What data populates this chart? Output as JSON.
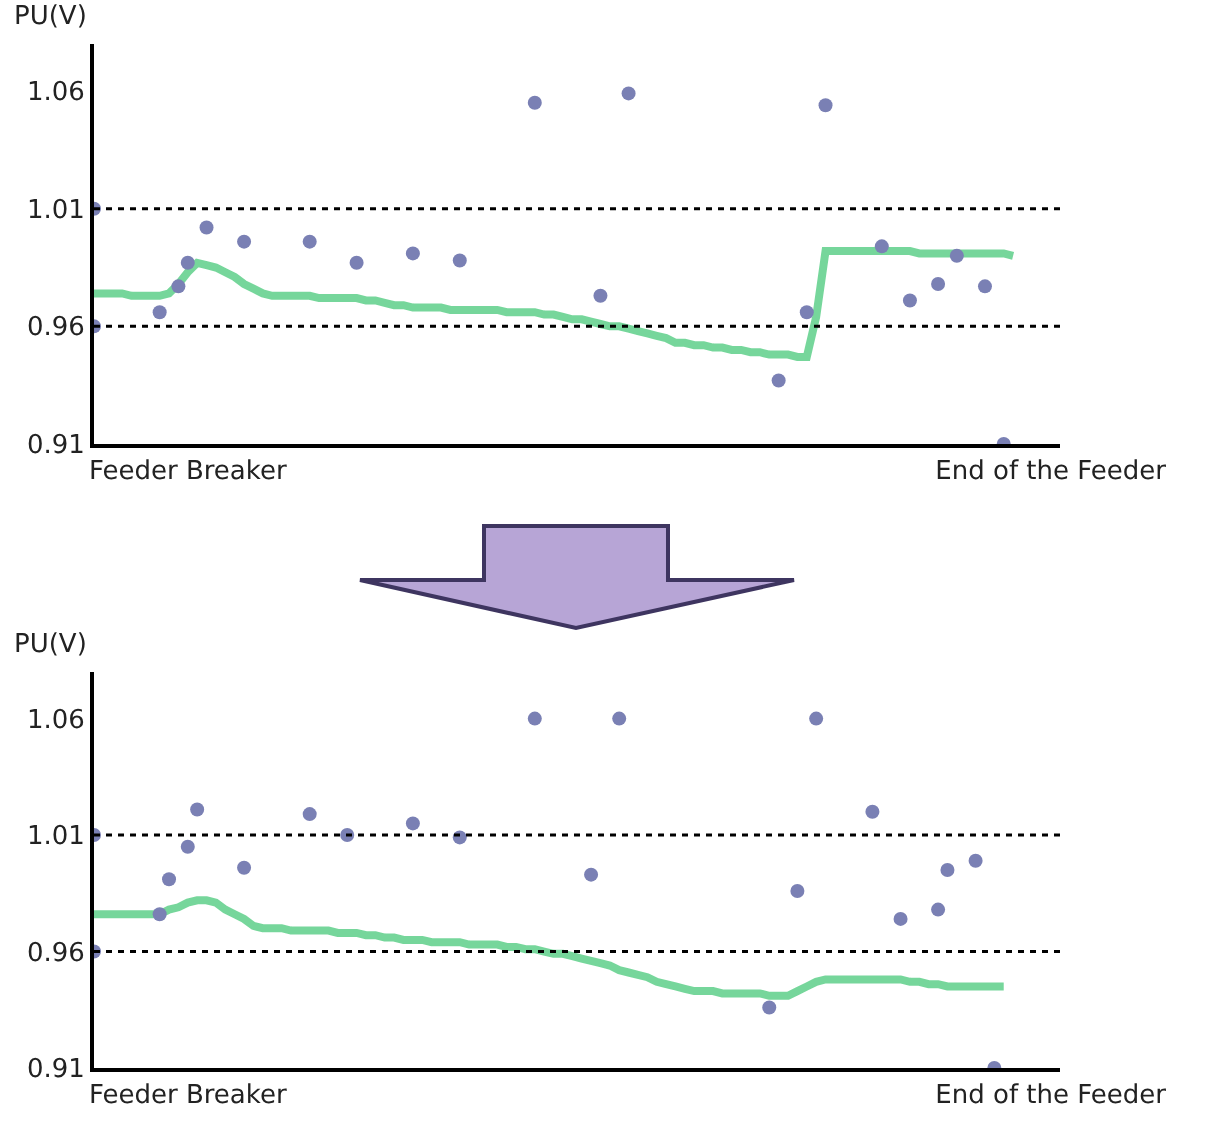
{
  "chart_data": [
    {
      "type": "scatter",
      "ylabel": "PU(V)",
      "ylim": [
        0.91,
        1.08
      ],
      "yticks": [
        0.91,
        0.96,
        1.01,
        1.06
      ],
      "categories": [
        null,
        null,
        null,
        null,
        null,
        null,
        null,
        null,
        null,
        null,
        "Feeder Breaker",
        null,
        null,
        null,
        null,
        null,
        null,
        null,
        null,
        null,
        null,
        null,
        null,
        null,
        null,
        null,
        null,
        null,
        null,
        null,
        null,
        null,
        null,
        null,
        null,
        null,
        null,
        null,
        null,
        null,
        null,
        null,
        null,
        null,
        null,
        null,
        null,
        null,
        null,
        null,
        null,
        null,
        null,
        null,
        null,
        null,
        null,
        null,
        null,
        null,
        null,
        null,
        null,
        null,
        null,
        null,
        null,
        null,
        null,
        null,
        null,
        null,
        null,
        null,
        null,
        null,
        null,
        null,
        null,
        null,
        null,
        null,
        null,
        null,
        null,
        null,
        null,
        null,
        null,
        null,
        null,
        null,
        null,
        null,
        null,
        null,
        null,
        null,
        null,
        null,
        null,
        null,
        "End of the Feeder",
        null
      ],
      "ref_lines": [
        {
          "axis": "y",
          "value": 1.01,
          "line_style": "dotted",
          "color": "#000000"
        },
        {
          "axis": "y",
          "value": 0.96,
          "line_style": "dotted",
          "color": "#000000"
        }
      ],
      "series": [
        {
          "color": "#7a80b4",
          "marker": "circle",
          "values": [
            1.01,
            null,
            null,
            null,
            null,
            null,
            null,
            0.966,
            null,
            0.977,
            0.987,
            null,
            1.002,
            null,
            null,
            null,
            0.996,
            null,
            null,
            null,
            null,
            null,
            null,
            0.996,
            null,
            null,
            null,
            null,
            0.987,
            null,
            null,
            null,
            null,
            null,
            0.991,
            null,
            null,
            null,
            null,
            0.988,
            null,
            null,
            null,
            null,
            null,
            null,
            null,
            1.055,
            null,
            null,
            null,
            null,
            null,
            null,
            0.973,
            null,
            null,
            1.059,
            null,
            null,
            null,
            null,
            null,
            null,
            null,
            null,
            null,
            null,
            null,
            null,
            null,
            null,
            null,
            0.937,
            null,
            null,
            0.966,
            null,
            1.054,
            null,
            null,
            null,
            null,
            null,
            0.994,
            null,
            null,
            0.971,
            null,
            null,
            0.978,
            null,
            0.99,
            null,
            null,
            0.977,
            null,
            0.91,
            null,
            null,
            null,
            null,
            null,
            null
          ]
        },
        {
          "color": "#7a80b4",
          "marker": "circle",
          "values": [
            0.96,
            null,
            null,
            null,
            null,
            null,
            null,
            null,
            null,
            null,
            null,
            null,
            null,
            null,
            null,
            null,
            null,
            null,
            null,
            null,
            null,
            null,
            null,
            null,
            null,
            null,
            null,
            null,
            null,
            null,
            null,
            null,
            null,
            null,
            null,
            null,
            null,
            null,
            null,
            null,
            null,
            null,
            null,
            null,
            null,
            null,
            null,
            null,
            null,
            null,
            null,
            null,
            null,
            null,
            null,
            null,
            null,
            null,
            null,
            null,
            null,
            null,
            null,
            null,
            null,
            null,
            null,
            null,
            null,
            null,
            null,
            null,
            null,
            null,
            null,
            null,
            null,
            null,
            null,
            null,
            null,
            null,
            null,
            null,
            null,
            null,
            null,
            null,
            null,
            null,
            null,
            null,
            null,
            null,
            null,
            null,
            null,
            null,
            null,
            null,
            null,
            null,
            null,
            null
          ]
        },
        {
          "type": "line",
          "color": "#5fd08a",
          "line_style": "solid",
          "values": [
            0.974,
            0.974,
            0.974,
            0.974,
            0.973,
            0.973,
            0.973,
            0.973,
            0.974,
            0.978,
            0.983,
            0.987,
            0.986,
            0.985,
            0.983,
            0.981,
            0.978,
            0.976,
            0.974,
            0.973,
            0.973,
            0.973,
            0.973,
            0.973,
            0.972,
            0.972,
            0.972,
            0.972,
            0.972,
            0.971,
            0.971,
            0.97,
            0.969,
            0.969,
            0.968,
            0.968,
            0.968,
            0.968,
            0.967,
            0.967,
            0.967,
            0.967,
            0.967,
            0.967,
            0.966,
            0.966,
            0.966,
            0.966,
            0.965,
            0.965,
            0.964,
            0.963,
            0.963,
            0.962,
            0.961,
            0.96,
            0.96,
            0.959,
            0.958,
            0.957,
            0.956,
            0.955,
            0.953,
            0.953,
            0.952,
            0.952,
            0.951,
            0.951,
            0.95,
            0.95,
            0.949,
            0.949,
            0.948,
            0.948,
            0.948,
            0.947,
            0.947,
            0.964,
            0.992,
            0.992,
            0.992,
            0.992,
            0.992,
            0.992,
            0.992,
            0.992,
            0.992,
            0.992,
            0.991,
            0.991,
            0.991,
            0.991,
            0.991,
            0.991,
            0.991,
            0.991,
            0.991,
            0.991,
            0.99,
            null,
            null,
            null,
            null,
            null
          ]
        }
      ]
    },
    {
      "type": "scatter",
      "ylabel": "PU(V)",
      "ylim": [
        0.91,
        1.08
      ],
      "yticks": [
        0.91,
        0.96,
        1.01,
        1.06
      ],
      "categories": [
        null,
        null,
        null,
        null,
        null,
        null,
        null,
        null,
        null,
        null,
        "Feeder Breaker",
        null,
        null,
        null,
        null,
        null,
        null,
        null,
        null,
        null,
        null,
        null,
        null,
        null,
        null,
        null,
        null,
        null,
        null,
        null,
        null,
        null,
        null,
        null,
        null,
        null,
        null,
        null,
        null,
        null,
        null,
        null,
        null,
        null,
        null,
        null,
        null,
        null,
        null,
        null,
        null,
        null,
        null,
        null,
        null,
        null,
        null,
        null,
        null,
        null,
        null,
        null,
        null,
        null,
        null,
        null,
        null,
        null,
        null,
        null,
        null,
        null,
        null,
        null,
        null,
        null,
        null,
        null,
        null,
        null,
        null,
        null,
        null,
        null,
        null,
        null,
        null,
        null,
        null,
        null,
        null,
        null,
        null,
        null,
        null,
        null,
        null,
        null,
        null,
        null,
        null,
        null,
        "End of the Feeder",
        null
      ],
      "ref_lines": [
        {
          "axis": "y",
          "value": 1.01,
          "line_style": "dotted",
          "color": "#000000"
        },
        {
          "axis": "y",
          "value": 0.96,
          "line_style": "dotted",
          "color": "#000000"
        }
      ],
      "series": [
        {
          "color": "#7a80b4",
          "marker": "circle",
          "values": [
            1.01,
            null,
            null,
            null,
            null,
            null,
            null,
            0.976,
            0.991,
            null,
            1.005,
            1.021,
            null,
            null,
            null,
            null,
            0.996,
            null,
            null,
            null,
            null,
            null,
            null,
            1.019,
            null,
            null,
            null,
            1.01,
            null,
            null,
            null,
            null,
            null,
            null,
            1.015,
            null,
            null,
            null,
            null,
            1.009,
            null,
            null,
            null,
            null,
            null,
            null,
            null,
            1.06,
            null,
            null,
            null,
            null,
            null,
            0.993,
            null,
            null,
            1.06,
            null,
            null,
            null,
            null,
            null,
            null,
            null,
            null,
            null,
            null,
            null,
            null,
            null,
            null,
            null,
            0.936,
            null,
            null,
            0.986,
            null,
            1.06,
            null,
            null,
            null,
            null,
            null,
            1.02,
            null,
            null,
            0.974,
            null,
            null,
            null,
            0.978,
            0.995,
            null,
            null,
            0.999,
            null,
            0.91,
            null,
            null,
            null,
            null,
            null,
            null,
            null
          ]
        },
        {
          "color": "#7a80b4",
          "marker": "circle",
          "values": [
            0.96,
            null,
            null,
            null,
            null,
            null,
            null,
            null,
            null,
            null,
            null,
            null,
            null,
            null,
            null,
            null,
            null,
            null,
            null,
            null,
            null,
            null,
            null,
            null,
            null,
            null,
            null,
            null,
            null,
            null,
            null,
            null,
            null,
            null,
            null,
            null,
            null,
            null,
            null,
            null,
            null,
            null,
            null,
            null,
            null,
            null,
            null,
            null,
            null,
            null,
            null,
            null,
            null,
            null,
            null,
            null,
            null,
            null,
            null,
            null,
            null,
            null,
            null,
            null,
            null,
            null,
            null,
            null,
            null,
            null,
            null,
            null,
            null,
            null,
            null,
            null,
            null,
            null,
            null,
            null,
            null,
            null,
            null,
            null,
            null,
            null,
            null,
            null,
            null,
            null,
            null,
            null,
            null,
            null,
            null,
            null,
            null,
            null,
            null,
            null,
            null,
            null,
            null,
            null
          ]
        },
        {
          "type": "line",
          "color": "#5fd08a",
          "line_style": "solid",
          "values": [
            0.976,
            0.976,
            0.976,
            0.976,
            0.976,
            0.976,
            0.976,
            0.976,
            0.978,
            0.979,
            0.981,
            0.982,
            0.982,
            0.981,
            0.978,
            0.976,
            0.974,
            0.971,
            0.97,
            0.97,
            0.97,
            0.969,
            0.969,
            0.969,
            0.969,
            0.969,
            0.968,
            0.968,
            0.968,
            0.967,
            0.967,
            0.966,
            0.966,
            0.965,
            0.965,
            0.965,
            0.964,
            0.964,
            0.964,
            0.964,
            0.963,
            0.963,
            0.963,
            0.963,
            0.962,
            0.962,
            0.961,
            0.961,
            0.96,
            0.959,
            0.959,
            0.958,
            0.957,
            0.956,
            0.955,
            0.954,
            0.952,
            0.951,
            0.95,
            0.949,
            0.947,
            0.946,
            0.945,
            0.944,
            0.943,
            0.943,
            0.943,
            0.942,
            0.942,
            0.942,
            0.942,
            0.942,
            0.941,
            0.941,
            0.941,
            0.943,
            0.945,
            0.947,
            0.948,
            0.948,
            0.948,
            0.948,
            0.948,
            0.948,
            0.948,
            0.948,
            0.948,
            0.947,
            0.947,
            0.946,
            0.946,
            0.945,
            0.945,
            0.945,
            0.945,
            0.945,
            0.945,
            0.945,
            null,
            null,
            null,
            null,
            null,
            null
          ]
        }
      ]
    }
  ]
}
